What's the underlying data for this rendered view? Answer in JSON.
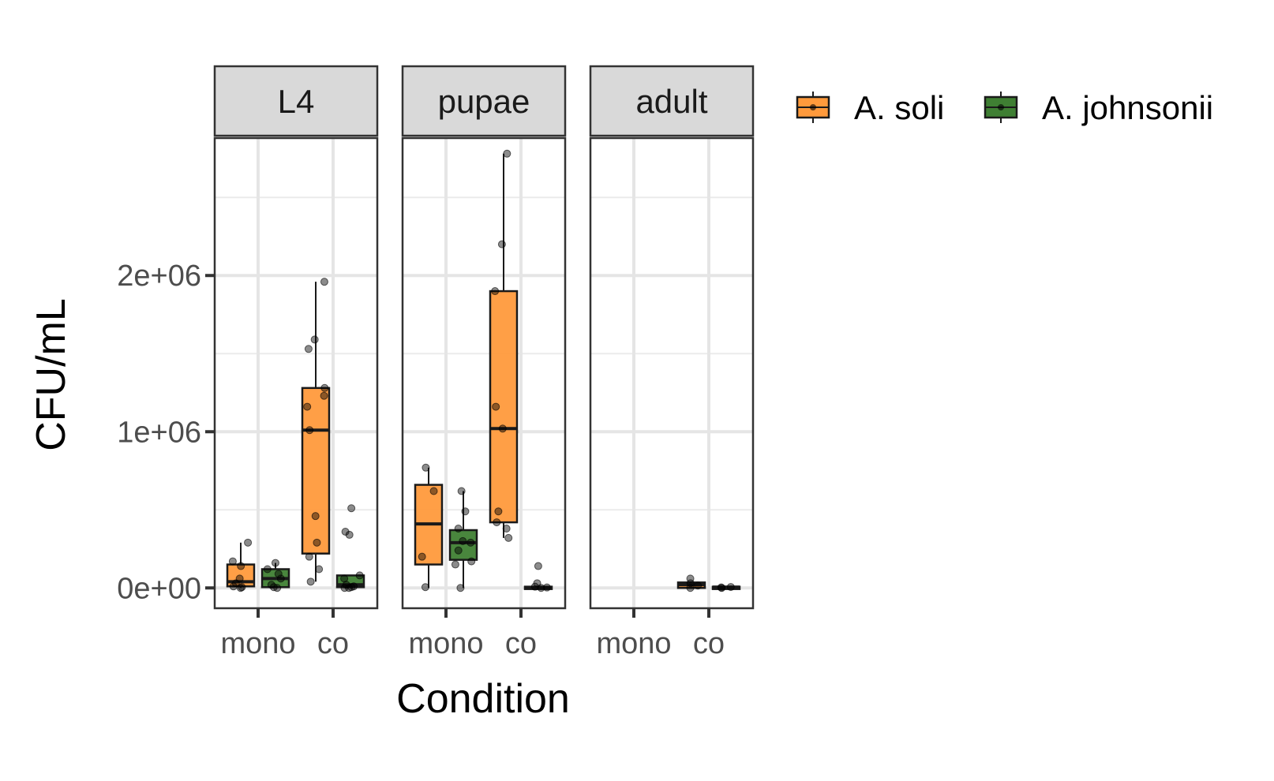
{
  "chart_data": {
    "type": "boxplot",
    "xlabel": "Condition",
    "ylabel": "CFU/mL",
    "ylim": [
      -130000,
      2880000
    ],
    "y_ticks": [
      {
        "value": 0,
        "label": "0e+00"
      },
      {
        "value": 1000000,
        "label": "1e+06"
      },
      {
        "value": 2000000,
        "label": "2e+06"
      }
    ],
    "y_minor_grid": [
      500000,
      1500000,
      2500000
    ],
    "categories": [
      "mono",
      "co"
    ],
    "legend": {
      "placement": "right",
      "entries": [
        {
          "name": "A. soli",
          "color": "#FF9A3C"
        },
        {
          "name": "A. johnsonii",
          "color": "#3F7F33"
        }
      ]
    },
    "grid": true,
    "panels": [
      {
        "label": "L4",
        "groups": [
          {
            "category": "mono",
            "series": "A. soli",
            "min": 0,
            "q1": 10000,
            "median": 40000,
            "q3": 150000,
            "max": 290000,
            "points": [
              0,
              5000,
              10000,
              30000,
              60000,
              140000,
              170000,
              290000
            ]
          },
          {
            "category": "mono",
            "series": "A. johnsonii",
            "min": 0,
            "q1": 5000,
            "median": 60000,
            "q3": 120000,
            "max": 160000,
            "points": [
              0,
              5000,
              20000,
              60000,
              90000,
              120000,
              160000
            ]
          },
          {
            "category": "co",
            "series": "A. soli",
            "min": 40000,
            "q1": 220000,
            "median": 1010000,
            "q3": 1280000,
            "max": 1960000,
            "points": [
              40000,
              120000,
              200000,
              290000,
              460000,
              1010000,
              1160000,
              1230000,
              1280000,
              1530000,
              1590000,
              1960000
            ]
          },
          {
            "category": "co",
            "series": "A. johnsonii",
            "min": 0,
            "q1": 5000,
            "median": 20000,
            "q3": 80000,
            "max": 80000,
            "points": [
              0,
              0,
              5000,
              10000,
              20000,
              60000,
              80000,
              340000,
              360000,
              510000
            ]
          }
        ]
      },
      {
        "label": "pupae",
        "groups": [
          {
            "category": "mono",
            "series": "A. soli",
            "min": 0,
            "q1": 150000,
            "median": 410000,
            "q3": 660000,
            "max": 770000,
            "points": [
              5000,
              200000,
              620000,
              770000
            ]
          },
          {
            "category": "mono",
            "series": "A. johnsonii",
            "min": 0,
            "q1": 180000,
            "median": 290000,
            "q3": 370000,
            "max": 620000,
            "points": [
              0,
              150000,
              170000,
              240000,
              290000,
              300000,
              380000,
              490000,
              620000
            ]
          },
          {
            "category": "co",
            "series": "A. soli",
            "min": 320000,
            "q1": 420000,
            "median": 1020000,
            "q3": 1900000,
            "max": 2780000,
            "points": [
              320000,
              380000,
              420000,
              490000,
              1020000,
              1160000,
              1900000,
              2200000,
              2780000
            ]
          },
          {
            "category": "co",
            "series": "A. johnsonii",
            "min": 0,
            "q1": 0,
            "median": 3000,
            "q3": 8000,
            "max": 10000,
            "points": [
              0,
              3000,
              8000,
              30000,
              140000
            ]
          }
        ]
      },
      {
        "label": "adult",
        "groups": [
          {
            "category": "co",
            "series": "A. soli",
            "min": 0,
            "q1": 0,
            "median": 20000,
            "q3": 35000,
            "max": 35000,
            "points": [
              0,
              15000,
              30000,
              60000
            ]
          },
          {
            "category": "co",
            "series": "A. johnsonii",
            "min": 0,
            "q1": 0,
            "median": 5000,
            "q3": 8000,
            "max": 8000,
            "points": [
              0,
              3000,
              6000
            ]
          }
        ]
      }
    ]
  }
}
